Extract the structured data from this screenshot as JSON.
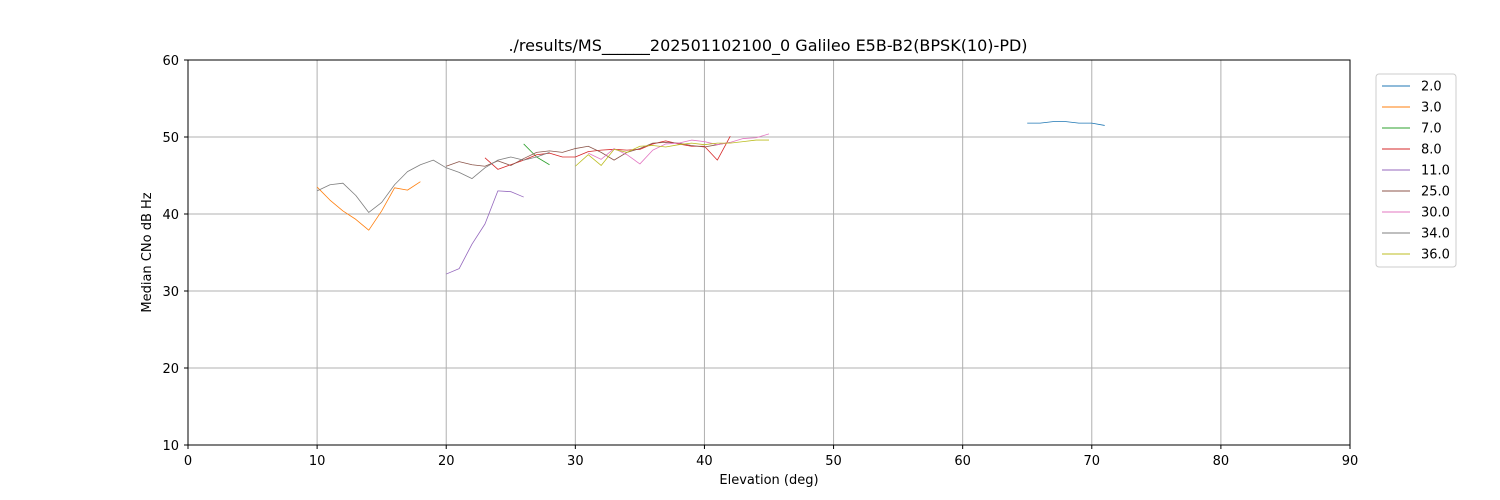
{
  "chart_data": {
    "type": "line",
    "title": "./results/MS______202501102100_0 Galileo E5B-B2(BPSK(10)-PD)",
    "xlabel": "Elevation (deg)",
    "ylabel": "Median CNo dB Hz",
    "xlim": [
      0,
      90
    ],
    "ylim": [
      10,
      60
    ],
    "xticks": [
      0,
      10,
      20,
      30,
      40,
      50,
      60,
      70,
      80,
      90
    ],
    "yticks": [
      10,
      20,
      30,
      40,
      50,
      60
    ],
    "grid": true,
    "legend_position": "right",
    "series": [
      {
        "name": "2.0",
        "color": "#1f77b4",
        "x": [
          65,
          66,
          67,
          68,
          69,
          70,
          71
        ],
        "y": [
          51.8,
          51.8,
          52.0,
          52.0,
          51.8,
          51.8,
          51.5
        ]
      },
      {
        "name": "3.0",
        "color": "#ff7f0e",
        "x": [
          10,
          11,
          12,
          13,
          14,
          15,
          16,
          17,
          18
        ],
        "y": [
          43.5,
          41.8,
          40.4,
          39.3,
          37.9,
          40.4,
          43.4,
          43.1,
          44.2
        ]
      },
      {
        "name": "7.0",
        "color": "#2ca02c",
        "x": [
          26,
          27,
          28
        ],
        "y": [
          49.1,
          47.4,
          46.4
        ]
      },
      {
        "name": "8.0",
        "color": "#d62728",
        "x": [
          23,
          24,
          25,
          26,
          27,
          28,
          29,
          30,
          31,
          32,
          33,
          34,
          35,
          36,
          37,
          38,
          39,
          40,
          41,
          42
        ],
        "y": [
          47.3,
          45.8,
          46.4,
          47.0,
          47.7,
          47.9,
          47.4,
          47.4,
          48.1,
          48.3,
          48.4,
          48.3,
          48.4,
          49.1,
          49.5,
          49.1,
          48.8,
          48.8,
          47.0,
          50.1
        ]
      },
      {
        "name": "11.0",
        "color": "#9467bd",
        "x": [
          20,
          21,
          22,
          23,
          24,
          25,
          26
        ],
        "y": [
          32.2,
          32.9,
          36.1,
          38.7,
          43.0,
          42.9,
          42.2
        ]
      },
      {
        "name": "25.0",
        "color": "#8c564b",
        "x": [
          20,
          21,
          22,
          23,
          24,
          25,
          26,
          27,
          28,
          29,
          30,
          31,
          32,
          33,
          34,
          35,
          36,
          37,
          38,
          39,
          40,
          41,
          42
        ],
        "y": [
          46.2,
          46.8,
          46.4,
          46.2,
          46.9,
          46.3,
          47.2,
          48.0,
          48.2,
          48.0,
          48.5,
          48.8,
          48.0,
          47.0,
          48.0,
          48.5,
          49.2,
          49.3,
          49.2,
          48.9,
          48.7,
          49.0,
          49.3
        ]
      },
      {
        "name": "30.0",
        "color": "#e377c2",
        "x": [
          31,
          32,
          33,
          34,
          35,
          36,
          37,
          38,
          39,
          40,
          41,
          42,
          43,
          44,
          45
        ],
        "y": [
          47.9,
          47.1,
          48.5,
          47.7,
          46.5,
          48.3,
          49.1,
          49.2,
          49.6,
          49.4,
          49.0,
          49.3,
          49.8,
          49.9,
          50.4
        ]
      },
      {
        "name": "34.0",
        "color": "#7f7f7f",
        "x": [
          10,
          11,
          12,
          13,
          14,
          15,
          16,
          17,
          18,
          19,
          20,
          21,
          22,
          23,
          24,
          25,
          26,
          27,
          28
        ],
        "y": [
          43.0,
          43.8,
          44.0,
          42.4,
          40.2,
          41.5,
          43.8,
          45.5,
          46.4,
          47.0,
          46.0,
          45.4,
          44.6,
          46.0,
          47.0,
          47.4,
          47.0,
          47.4,
          48.0
        ]
      },
      {
        "name": "36.0",
        "color": "#bcbd22",
        "x": [
          30,
          31,
          32,
          33,
          34,
          35,
          36,
          37,
          38,
          39,
          40,
          41,
          42,
          43,
          44,
          45
        ],
        "y": [
          46.2,
          47.7,
          46.3,
          48.4,
          48.0,
          48.8,
          48.9,
          48.7,
          49.0,
          49.2,
          49.0,
          49.2,
          49.2,
          49.4,
          49.6,
          49.6
        ]
      }
    ]
  }
}
